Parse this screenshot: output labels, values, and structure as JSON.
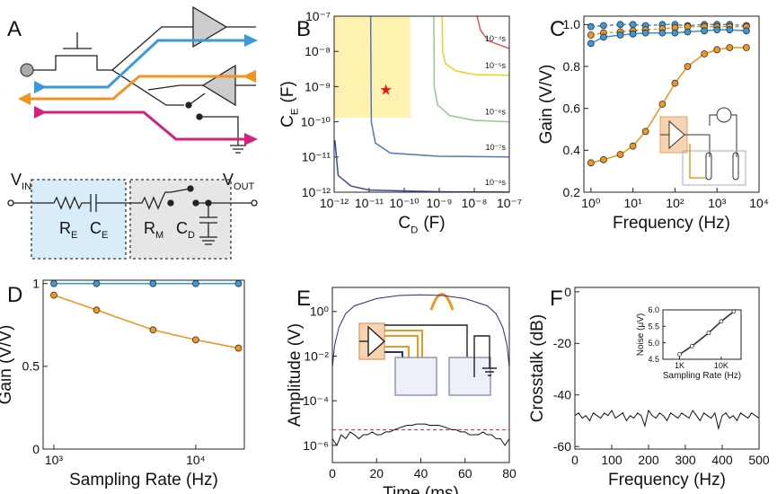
{
  "diagram": {
    "panel": "A",
    "v_in": {
      "text": "V",
      "sub": "IN"
    },
    "v_out": {
      "text": "V",
      "sub": "OUT"
    },
    "r_e": {
      "text": "R",
      "sub": "E"
    },
    "c_e": {
      "text": "C",
      "sub": "E"
    },
    "r_m": {
      "text": "R",
      "sub": "M"
    },
    "c_d": {
      "text": "C",
      "sub": "D"
    }
  },
  "chart_data": [
    {
      "panel": "B",
      "type": "contour",
      "xscale": "log",
      "yscale": "log",
      "xlabel": {
        "text": "C",
        "sub": "D",
        "unit": "(F)"
      },
      "ylabel": {
        "text": "C",
        "sub": "E",
        "unit": "(F)"
      },
      "xlim": [
        1e-12,
        1e-07
      ],
      "ylim": [
        1e-12,
        1e-07
      ],
      "xticks": [
        {
          "value": 1e-12,
          "label": "10⁻¹²"
        },
        {
          "value": 1e-11,
          "label": "10⁻¹¹"
        },
        {
          "value": 1e-10,
          "label": "10⁻¹⁰"
        },
        {
          "value": 1e-09,
          "label": "10⁻⁹"
        },
        {
          "value": 1e-08,
          "label": "10⁻⁸"
        },
        {
          "value": 1e-07,
          "label": "10⁻⁷"
        }
      ],
      "yticks": [
        {
          "value": 1e-12,
          "label": "10⁻¹²"
        },
        {
          "value": 1e-11,
          "label": "10⁻¹¹"
        },
        {
          "value": 1e-10,
          "label": "10⁻¹⁰"
        },
        {
          "value": 1e-09,
          "label": "10⁻⁹"
        },
        {
          "value": 1e-08,
          "label": "10⁻⁸"
        },
        {
          "value": 1e-07,
          "label": "10⁻⁷"
        }
      ],
      "region": {
        "color": "#fff2b0",
        "x": [
          1e-12,
          1.5e-10
        ],
        "y": [
          1.3e-10,
          1e-07
        ]
      },
      "star": {
        "color": "#e8141e",
        "x": 3e-11,
        "y": 8e-10
      },
      "series": [
        {
          "name": "10⁻⁴s",
          "color": "#e05555",
          "x": [
            1.2e-08,
            1.5e-08,
            2.5e-08,
            1e-07
          ],
          "values": [
            1e-07,
            4e-08,
            2e-08,
            1.2e-08
          ]
        },
        {
          "name": "10⁻⁵s",
          "color": "#f0d020",
          "x": [
            1.2e-09,
            1.25e-09,
            1.5e-09,
            3e-09,
            1e-08,
            1e-07
          ],
          "values": [
            1e-07,
            1e-08,
            4.5e-09,
            2.8e-09,
            2.2e-09,
            2.1e-09
          ]
        },
        {
          "name": "10⁻⁶s",
          "color": "#90c890",
          "x": [
            7e-10,
            7.2e-10,
            9e-10,
            2e-09,
            1e-08,
            1e-07
          ],
          "values": [
            1e-07,
            1e-09,
            3e-10,
            1.5e-10,
            1.1e-10,
            1e-10
          ]
        },
        {
          "name": "10⁻⁷s",
          "color": "#4a7ab8",
          "x": [
            1.1e-11,
            1.15e-11,
            1.5e-11,
            4e-11,
            1e-09,
            1e-07
          ],
          "values": [
            1e-07,
            1e-10,
            2.5e-11,
            1.3e-11,
            1.05e-11,
            1e-11
          ]
        },
        {
          "name": "10⁻⁸s",
          "color": "#3a4aa0",
          "x": [
            1.05e-12,
            1.3e-12,
            3e-12,
            1e-11,
            1e-09,
            1e-07
          ],
          "values": [
            3e-11,
            3e-12,
            1.5e-12,
            1.15e-12,
            1.03e-12,
            1.01e-12
          ]
        }
      ]
    },
    {
      "panel": "C",
      "type": "line",
      "xscale": "log",
      "xlabel": "Frequency (Hz)",
      "ylabel": "Gain (V/V)",
      "xlim": [
        0.68,
        10000
      ],
      "ylim": [
        0.2,
        1.04
      ],
      "xticks": [
        {
          "value": 1,
          "label": "10⁰"
        },
        {
          "value": 10,
          "label": "10¹"
        },
        {
          "value": 100,
          "label": "10²"
        },
        {
          "value": 1000,
          "label": "10³"
        },
        {
          "value": 10000,
          "label": "10⁴"
        }
      ],
      "yticks": [
        0.2,
        0.4,
        0.6,
        0.8,
        {
          "value": 1,
          "label": "1.0"
        }
      ],
      "x": [
        1,
        2,
        5,
        10,
        20,
        50,
        100,
        200,
        500,
        1000,
        2000,
        5000
      ],
      "series": [
        {
          "color": "#3a9ad9",
          "dash": true,
          "markers": true,
          "values": [
            0.99,
            0.995,
            1.0,
            1.0,
            0.995,
            1.0,
            1.0,
            0.995,
            1.0,
            1.0,
            1.0,
            0.995
          ]
        },
        {
          "color": "#f0961e",
          "dash": true,
          "markers": true,
          "values": [
            0.95,
            0.96,
            0.965,
            0.97,
            0.975,
            0.98,
            0.985,
            0.99,
            0.99,
            0.99,
            0.99,
            0.99
          ]
        },
        {
          "color": "#3a9ad9",
          "markers": true,
          "values": [
            0.91,
            0.94,
            0.95,
            0.955,
            0.96,
            0.96,
            0.96,
            0.965,
            0.97,
            0.975,
            0.975,
            0.97
          ]
        },
        {
          "color": "#f0961e",
          "markers": true,
          "values": [
            0.34,
            0.355,
            0.38,
            0.42,
            0.49,
            0.62,
            0.72,
            0.8,
            0.86,
            0.88,
            0.89,
            0.89
          ]
        }
      ]
    },
    {
      "panel": "D",
      "type": "line",
      "xscale": "log",
      "xlabel": "Sampling Rate (Hz)",
      "ylabel": "Gain (V/V)",
      "xlim": [
        840,
        22000
      ],
      "ylim": [
        0,
        1.02
      ],
      "xticks": [
        {
          "value": 1000,
          "label": "10³"
        },
        {
          "value": 10000,
          "label": "10⁴"
        }
      ],
      "yticks": [
        0,
        0.5,
        1
      ],
      "x": [
        1000,
        2000,
        5000,
        10000,
        20000
      ],
      "series": [
        {
          "color": "#3a9ad9",
          "markers": true,
          "values": [
            1,
            1,
            1,
            1,
            1
          ]
        },
        {
          "color": "#f0961e",
          "markers": true,
          "values": [
            0.93,
            0.84,
            0.72,
            0.66,
            0.61
          ]
        }
      ]
    },
    {
      "panel": "E",
      "type": "line",
      "yscale": "log",
      "xlabel": "Time (ms)",
      "ylabel": "Amplitude (V)",
      "xlim": [
        0,
        80
      ],
      "ylim": [
        1.7e-07,
        12
      ],
      "xticks": [
        0,
        20,
        40,
        60,
        80
      ],
      "yticks": [
        {
          "value": 1,
          "label": "10⁰"
        },
        {
          "value": 0.01,
          "label": "10⁻²"
        },
        {
          "value": 0.0001,
          "label": "10⁻⁴"
        },
        {
          "value": 1e-06,
          "label": "10⁻⁶"
        }
      ],
      "series": [
        {
          "color": "#2c2c7a",
          "x": [
            0,
            1,
            3,
            6,
            10,
            20,
            30,
            40,
            50,
            60,
            70,
            74,
            77,
            79,
            80
          ],
          "values": [
            0.003,
            0.03,
            0.2,
            0.8,
            1.8,
            3.8,
            5.2,
            5.6,
            5.2,
            3.8,
            1.8,
            0.8,
            0.2,
            0.03,
            0.003
          ]
        },
        {
          "color": "#e03030",
          "dash": true,
          "x": [
            0,
            80
          ],
          "values": [
            5e-06,
            5e-06
          ]
        },
        {
          "color": "#111111",
          "x": [
            0,
            2,
            4,
            6,
            8,
            10,
            12,
            14,
            16,
            18,
            20,
            22,
            24,
            26,
            28,
            30,
            32,
            34,
            36,
            38,
            40,
            42,
            44,
            46,
            48,
            50,
            52,
            54,
            56,
            58,
            60,
            62,
            64,
            66,
            68,
            70,
            72,
            74,
            76,
            78,
            80
          ],
          "values": [
            2e-06,
            1e-06,
            3e-06,
            2e-06,
            4e-06,
            3e-06,
            2e-06,
            3e-06,
            3e-06,
            4e-06,
            3e-06,
            3e-06,
            4e-06,
            4e-06,
            5e-06,
            6e-06,
            7e-06,
            8e-06,
            8e-06,
            9e-06,
            9e-06,
            9e-06,
            8e-06,
            8e-06,
            8e-06,
            7e-06,
            6e-06,
            5e-06,
            5e-06,
            4e-06,
            4e-06,
            3e-06,
            3e-06,
            3e-06,
            4e-06,
            3e-06,
            3e-06,
            2e-06,
            2e-06,
            1e-06,
            2e-06
          ]
        }
      ]
    },
    {
      "panel": "F",
      "type": "line",
      "xlabel": "Frequency (Hz)",
      "ylabel": "Crosstalk (dB)",
      "xlim": [
        0,
        500
      ],
      "ylim": [
        -61,
        1.7
      ],
      "xticks": [
        0,
        100,
        200,
        300,
        400,
        500
      ],
      "yticks": [
        0,
        -20,
        -40,
        -60
      ],
      "x": [
        0,
        10,
        20,
        30,
        40,
        50,
        60,
        70,
        80,
        90,
        100,
        110,
        120,
        130,
        140,
        150,
        160,
        170,
        180,
        190,
        200,
        210,
        220,
        230,
        240,
        250,
        260,
        270,
        280,
        290,
        300,
        310,
        320,
        330,
        340,
        350,
        360,
        370,
        380,
        390,
        400,
        410,
        420,
        430,
        440,
        450,
        460,
        470,
        480,
        490,
        500
      ],
      "series": [
        {
          "color": "#111111",
          "values": [
            -48,
            -47,
            -49,
            -48,
            -50,
            -47,
            -48,
            -49,
            -47,
            -48,
            -46,
            -49,
            -48,
            -47,
            -50,
            -48,
            -49,
            -47,
            -48,
            -52,
            -46,
            -48,
            -49,
            -47,
            -48,
            -50,
            -47,
            -48,
            -49,
            -47,
            -48,
            -49,
            -46,
            -48,
            -50,
            -47,
            -48,
            -49,
            -47,
            -53,
            -48,
            -47,
            -49,
            -48,
            -50,
            -47,
            -48,
            -49,
            -47,
            -48,
            -49
          ]
        }
      ]
    },
    {
      "type": "line",
      "inset": true,
      "xscale": "log",
      "xlabel": "Sampling Rate (Hz)",
      "ylabel": "Noise (μV)",
      "xlim": [
        400,
        30000
      ],
      "ylim": [
        4.5,
        6.0
      ],
      "xticks": [
        {
          "value": 1000,
          "label": "1K"
        },
        {
          "value": 10000,
          "label": "10K"
        }
      ],
      "yticks": [
        {
          "value": 4.5,
          "label": "4.5"
        },
        {
          "value": 5,
          "label": "5.0"
        },
        {
          "value": 5.5,
          "label": "5.5"
        },
        {
          "value": 6,
          "label": "6.0"
        }
      ],
      "x": [
        1000,
        2000,
        5000,
        10000,
        20000
      ],
      "series": [
        {
          "color": "#333333",
          "markers": true,
          "marker_fill": "#ffffff",
          "values": [
            4.65,
            4.9,
            5.3,
            5.65,
            5.95
          ]
        }
      ]
    }
  ]
}
